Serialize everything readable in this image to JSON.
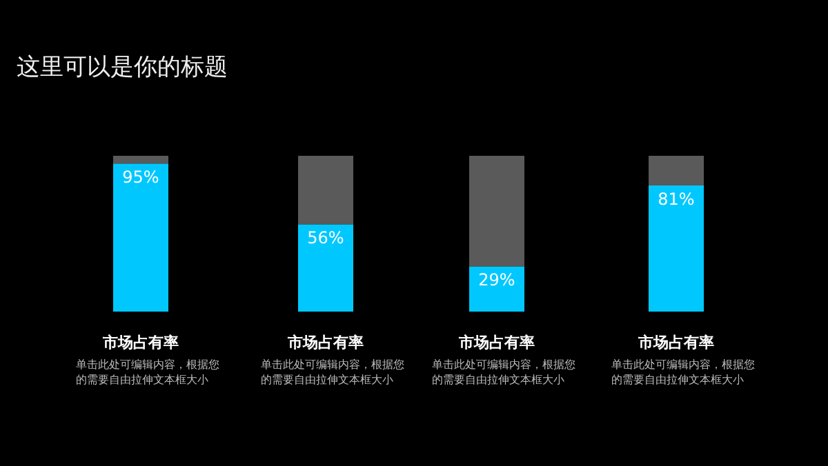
{
  "chart_data": {
    "type": "bar",
    "title": "这里可以是你的标题",
    "categories": [
      "市场占有率",
      "市场占有率",
      "市场占有率",
      "市场占有率"
    ],
    "stacked": true,
    "tick_labels": "x",
    "series": [
      {
        "color": "#00c8ff",
        "values": [
          95,
          56,
          29,
          81
        ],
        "value_labels": [
          "95%",
          "56%",
          "29%",
          "81%"
        ]
      },
      {
        "color": "#6a6a6a",
        "values": [
          5,
          44,
          71,
          19
        ]
      }
    ],
    "annotations": [
      "单击此处可编辑内容，根据您的需要自由拉伸文本框大小",
      "单击此处可编辑内容，根据您的需要自由拉伸文本框大小",
      "单击此处可编辑内容，根据您的需要自由拉伸文本框大小",
      "单击此处可编辑内容，根据您的需要自由拉伸文本框大小"
    ],
    "grid": false
  }
}
